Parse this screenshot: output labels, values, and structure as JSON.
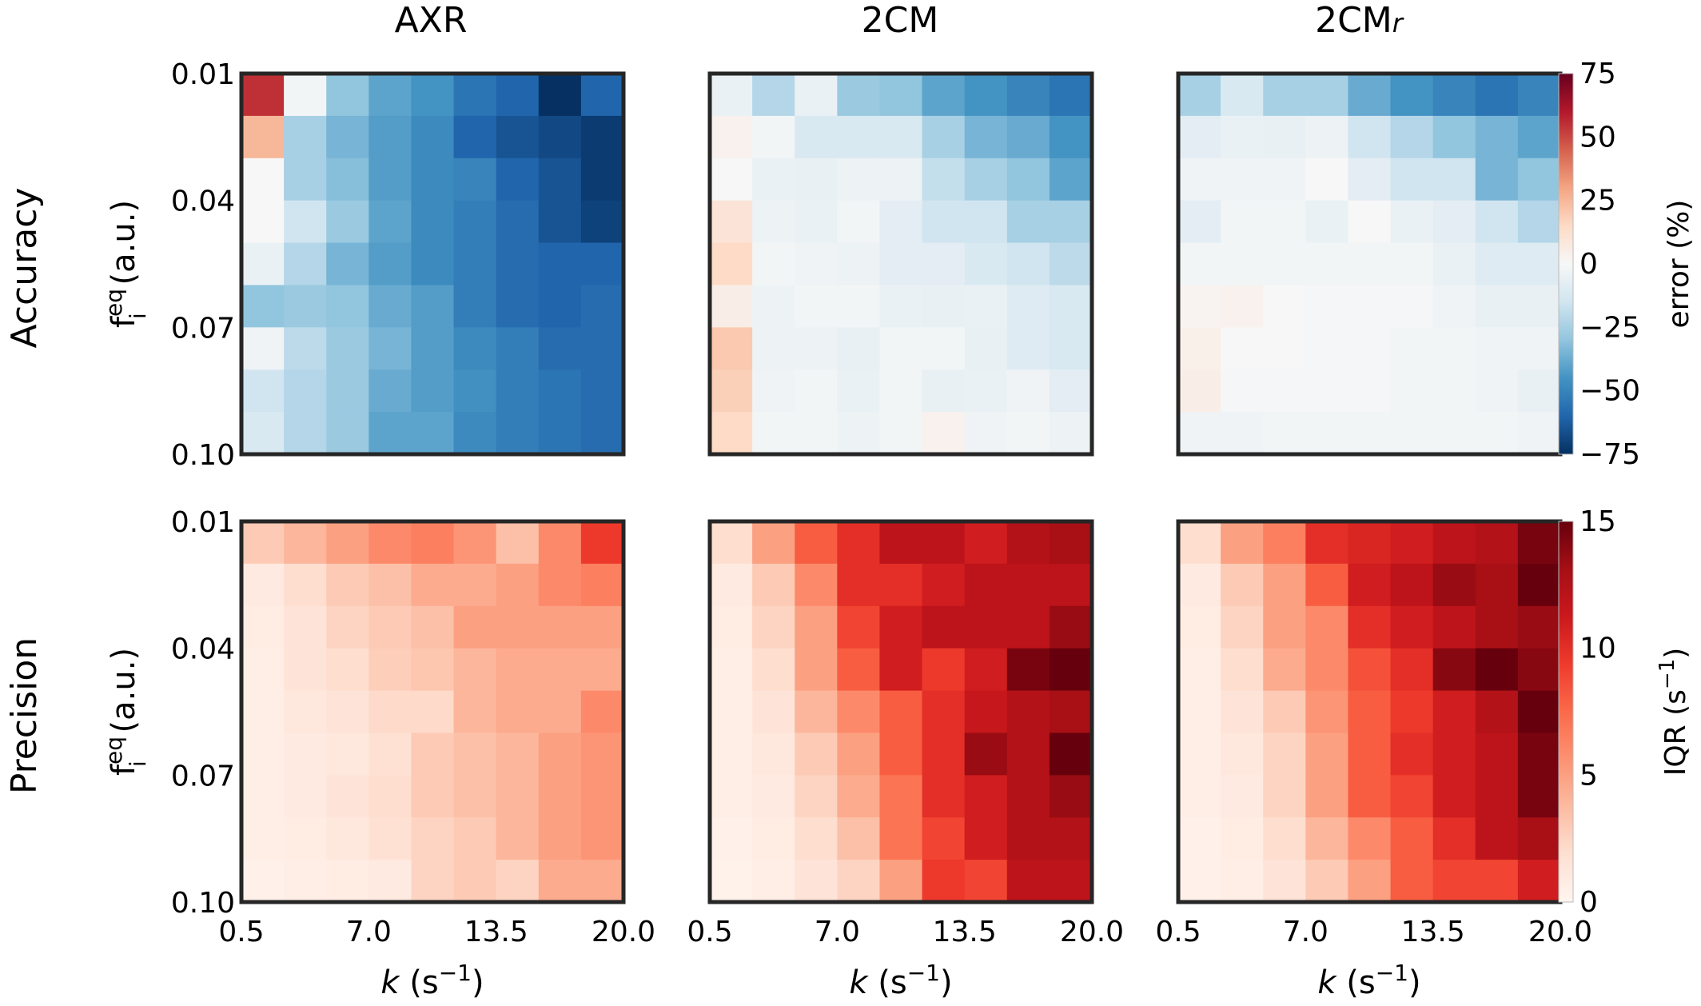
{
  "chart_data": {
    "type": "heatmap",
    "layout": "2 rows x 3 columns of heatmaps",
    "column_titles": [
      "AXR",
      "2CM",
      "2CM"
    ],
    "column_title_subscripts": [
      "",
      "",
      "r"
    ],
    "row_titles": [
      "Accuracy",
      "Precision"
    ],
    "ylabel": {
      "main": "f",
      "superscript": "eq",
      "subscript": "i",
      "unit": " (a.u.)"
    },
    "xlabel": {
      "main": "k",
      "unit_open": " (s",
      "superscript": "−1",
      "unit_close": ")"
    },
    "x_ticks": [
      "0.5",
      "7.0",
      "13.5",
      "20.0"
    ],
    "y_ticks": [
      "0.01",
      "0.04",
      "0.07",
      "0.10"
    ],
    "x_range": [
      0.5,
      20.0
    ],
    "y_range": [
      0.01,
      0.1
    ],
    "n_x": 9,
    "n_y": 9,
    "colorbars": [
      {
        "row": "Accuracy",
        "label": "error (%)",
        "ticks": [
          "75",
          "50",
          "25",
          "0",
          "−25",
          "−50",
          "−75"
        ],
        "range": [
          -75,
          75
        ],
        "colormap": "RdBu_r",
        "colors": {
          "neg": "#053061",
          "zero": "#f7f7f7",
          "pos": "#67001f"
        }
      },
      {
        "row": "Precision",
        "label_main": "IQR (s",
        "label_sup": "−1",
        "label_close": ")",
        "ticks": [
          "15",
          "10",
          "5",
          "0"
        ],
        "range": [
          0,
          15
        ],
        "colormap": "Reds",
        "colors": {
          "low": "#fff5f0",
          "high": "#67000d"
        }
      }
    ],
    "panels": [
      {
        "row": "Accuracy",
        "column": "AXR",
        "values": [
          [
            55,
            -2,
            -30,
            -40,
            -45,
            -55,
            -60,
            -75,
            -60
          ],
          [
            25,
            -25,
            -35,
            -42,
            -48,
            -60,
            -65,
            -68,
            -72
          ],
          [
            0,
            -25,
            -32,
            -42,
            -48,
            -50,
            -60,
            -65,
            -72
          ],
          [
            0,
            -15,
            -28,
            -40,
            -48,
            -52,
            -58,
            -65,
            -70
          ],
          [
            -5,
            -22,
            -35,
            -42,
            -48,
            -52,
            -58,
            -60,
            -60
          ],
          [
            -30,
            -28,
            -30,
            -38,
            -42,
            -52,
            -58,
            -60,
            -58
          ],
          [
            -3,
            -20,
            -28,
            -35,
            -42,
            -48,
            -52,
            -58,
            -58
          ],
          [
            -15,
            -22,
            -28,
            -38,
            -42,
            -46,
            -52,
            -55,
            -58
          ],
          [
            -12,
            -22,
            -28,
            -40,
            -40,
            -48,
            -52,
            -55,
            -58
          ]
        ]
      },
      {
        "row": "Accuracy",
        "column": "2CM",
        "values": [
          [
            -5,
            -22,
            -5,
            -28,
            -30,
            -40,
            -45,
            -50,
            -55
          ],
          [
            3,
            -2,
            -12,
            -12,
            -12,
            -25,
            -35,
            -38,
            -45
          ],
          [
            0,
            -5,
            -6,
            -4,
            -4,
            -18,
            -25,
            -30,
            -40
          ],
          [
            10,
            -4,
            -5,
            -2,
            -8,
            -15,
            -15,
            -25,
            -25
          ],
          [
            15,
            -2,
            -3,
            -4,
            -8,
            -8,
            -12,
            -15,
            -20
          ],
          [
            5,
            -4,
            -2,
            -2,
            -5,
            -6,
            -5,
            -10,
            -12
          ],
          [
            20,
            -4,
            -4,
            -6,
            -2,
            -2,
            -6,
            -10,
            -12
          ],
          [
            18,
            -3,
            -2,
            -5,
            -2,
            -6,
            -5,
            -3,
            -8
          ],
          [
            15,
            -2,
            -2,
            -4,
            -2,
            3,
            -3,
            -2,
            -4
          ]
        ]
      },
      {
        "row": "Accuracy",
        "column": "2CM_r",
        "values": [
          [
            -25,
            -12,
            -25,
            -25,
            -38,
            -45,
            -50,
            -55,
            -50
          ],
          [
            -8,
            -5,
            -6,
            -4,
            -15,
            -22,
            -30,
            -35,
            -40
          ],
          [
            -3,
            -3,
            -3,
            0,
            -8,
            -15,
            -15,
            -35,
            -30
          ],
          [
            -8,
            -2,
            -2,
            -5,
            0,
            -5,
            -8,
            -15,
            -22
          ],
          [
            -2,
            -2,
            -2,
            -2,
            -2,
            -2,
            -5,
            -10,
            -10
          ],
          [
            2,
            3,
            0,
            -1,
            -1,
            -1,
            -3,
            -6,
            -6
          ],
          [
            4,
            0,
            0,
            -1,
            -1,
            -2,
            -2,
            -3,
            -3
          ],
          [
            5,
            -1,
            -1,
            -1,
            -1,
            -2,
            -2,
            -3,
            -6
          ],
          [
            -3,
            -3,
            -2,
            -2,
            -2,
            -2,
            -2,
            -2,
            -3
          ]
        ]
      },
      {
        "row": "Precision",
        "column": "AXR",
        "values": [
          [
            3,
            4,
            5,
            6,
            6.5,
            5.5,
            3.5,
            6,
            9.5
          ],
          [
            1,
            2,
            3,
            3.5,
            4.5,
            4.5,
            5,
            6,
            6.5
          ],
          [
            0.8,
            1.5,
            2.5,
            3,
            3.5,
            5,
            5,
            5,
            5
          ],
          [
            0.6,
            1.5,
            2,
            2.8,
            3.2,
            4,
            4.5,
            4.5,
            4.5
          ],
          [
            0.6,
            1.2,
            1.5,
            2.2,
            2.2,
            4,
            4.5,
            4.5,
            6
          ],
          [
            0.6,
            1,
            1.2,
            1.8,
            3,
            3.5,
            4,
            5,
            5.5
          ],
          [
            0.6,
            1,
            1.5,
            2,
            3,
            3.5,
            4,
            5,
            5.5
          ],
          [
            0.6,
            0.8,
            1.2,
            1.8,
            2.5,
            3,
            4,
            5,
            5.5
          ],
          [
            0.4,
            0.6,
            0.8,
            1,
            2.5,
            3,
            2.5,
            4.5,
            4.5
          ]
        ]
      },
      {
        "row": "Precision",
        "column": "2CM",
        "values": [
          [
            2,
            5,
            8,
            10,
            12,
            12,
            11,
            12.5,
            13
          ],
          [
            1,
            3,
            6,
            10,
            10,
            11,
            12,
            12,
            12
          ],
          [
            0.8,
            2.5,
            5,
            9,
            11,
            12,
            12,
            12,
            13.5
          ],
          [
            0.6,
            2,
            5,
            8,
            11,
            9.5,
            11,
            14.5,
            15
          ],
          [
            0.6,
            1.5,
            4,
            6,
            8,
            10,
            11.5,
            12.5,
            13
          ],
          [
            0.6,
            1.2,
            3,
            5,
            8,
            10,
            13.5,
            12.5,
            15
          ],
          [
            0.6,
            1,
            2.5,
            4.5,
            7,
            10,
            11,
            12.5,
            13.5
          ],
          [
            0.4,
            0.8,
            2,
            3.5,
            7,
            9,
            11,
            12.5,
            12.5
          ],
          [
            0.3,
            0.6,
            1.5,
            2.5,
            5,
            9.5,
            9,
            12,
            12
          ]
        ]
      },
      {
        "row": "Precision",
        "column": "2CM_r",
        "values": [
          [
            2,
            5,
            6.5,
            10,
            10.5,
            11,
            12,
            12.5,
            14.5
          ],
          [
            1,
            3,
            5,
            8,
            11,
            12,
            13.5,
            13,
            15
          ],
          [
            0.8,
            2.5,
            5,
            6,
            10,
            11,
            12,
            13,
            13.5
          ],
          [
            0.6,
            2,
            4.5,
            6,
            8.5,
            10,
            14,
            15,
            14
          ],
          [
            0.6,
            1.5,
            3,
            5.5,
            8,
            9.5,
            11,
            12.5,
            15
          ],
          [
            0.6,
            1.2,
            2.5,
            5,
            8,
            10,
            11,
            12,
            14.5
          ],
          [
            0.6,
            1,
            2.5,
            5,
            8,
            9,
            11,
            12,
            14.5
          ],
          [
            0.4,
            0.8,
            2,
            4,
            6,
            8,
            10,
            12,
            13
          ],
          [
            0.4,
            0.6,
            1.5,
            3,
            5,
            8,
            9,
            9,
            11
          ]
        ]
      }
    ]
  }
}
